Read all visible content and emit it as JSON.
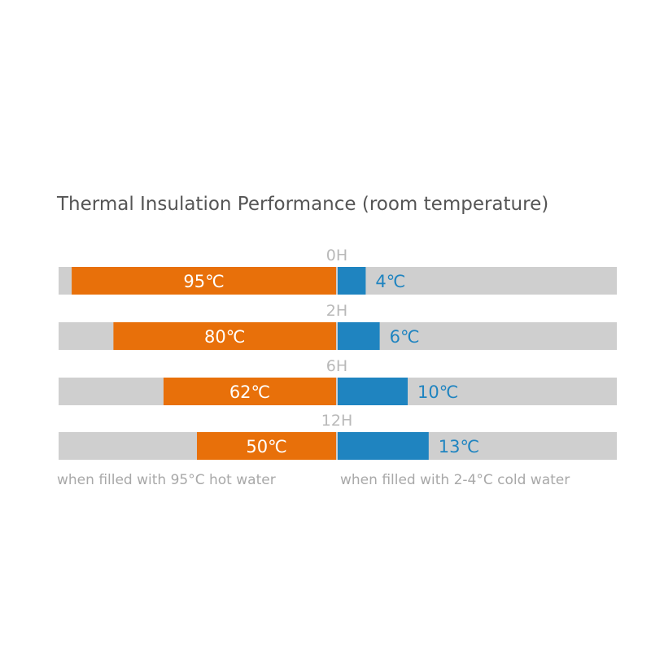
{
  "chart_data": {
    "type": "bar",
    "title": "Thermal Insulation Performance (room temperature)",
    "categories": [
      "0H",
      "2H",
      "6H",
      "12H"
    ],
    "series": [
      {
        "values": [
          95,
          80,
          62,
          50
        ]
      },
      {
        "values": [
          4,
          6,
          10,
          13
        ]
      }
    ],
    "value_labels": {
      "hot": [
        "95℃",
        "80℃",
        "62℃",
        "50℃"
      ],
      "cold": [
        "4℃",
        "6℃",
        "10℃",
        "13℃"
      ]
    },
    "notes": {
      "hot": "when filled with 95°C hot water",
      "cold": "when filled with 2-4°C cold water"
    },
    "colors": {
      "hot": "#e8700a",
      "cold": "#1f84c0",
      "track": "#cfcfcf"
    },
    "hot_scale_max": 100,
    "cold_scale_max": 40
  }
}
